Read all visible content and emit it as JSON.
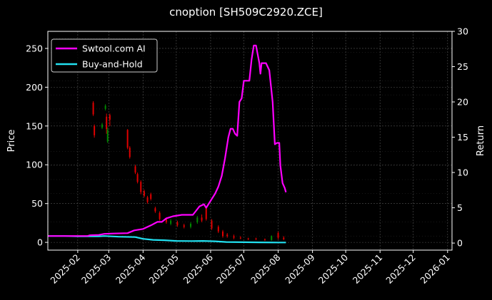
{
  "chart_data": {
    "type": "line",
    "title": "cnoption [SH509C2920.ZCE]",
    "ylabel_left": "Price",
    "ylabel_right": "Return",
    "xlim": [
      "2025-01-05",
      "2026-01-05"
    ],
    "ylim_left": [
      -10,
      272
    ],
    "ylim_right": [
      -1,
      30
    ],
    "grid": true,
    "legend_position": "upper-left",
    "x_ticks": [
      "2025-02",
      "2025-03",
      "2025-04",
      "2025-05",
      "2025-06",
      "2025-07",
      "2025-08",
      "2025-09",
      "2025-10",
      "2025-11",
      "2025-12",
      "2026-01"
    ],
    "y_ticks_left": [
      0,
      50,
      100,
      150,
      200,
      250
    ],
    "y_ticks_right": [
      0,
      5,
      10,
      15,
      20,
      25,
      30
    ],
    "colors": {
      "ai": "#ff00ff",
      "hold": "#22e0f0",
      "up": "#008a00",
      "down": "#e00000",
      "grid": "#555555",
      "background": "#000000"
    },
    "series": [
      {
        "name": "Swtool.com AI",
        "axis": "right",
        "points": [
          [
            "2025-01-05",
            1.0
          ],
          [
            "2025-02-10",
            1.0
          ],
          [
            "2025-02-12",
            1.1
          ],
          [
            "2025-02-20",
            1.15
          ],
          [
            "2025-02-25",
            1.3
          ],
          [
            "2025-03-05",
            1.35
          ],
          [
            "2025-03-18",
            1.4
          ],
          [
            "2025-03-24",
            1.8
          ],
          [
            "2025-04-01",
            2.0
          ],
          [
            "2025-04-08",
            2.5
          ],
          [
            "2025-04-14",
            3.0
          ],
          [
            "2025-04-18",
            3.0
          ],
          [
            "2025-04-22",
            3.5
          ],
          [
            "2025-04-28",
            3.8
          ],
          [
            "2025-05-06",
            4.0
          ],
          [
            "2025-05-12",
            4.0
          ],
          [
            "2025-05-16",
            4.0
          ],
          [
            "2025-05-19",
            4.6
          ],
          [
            "2025-05-22",
            5.2
          ],
          [
            "2025-05-26",
            5.5
          ],
          [
            "2025-05-28",
            5.0
          ],
          [
            "2025-06-01",
            6.0
          ],
          [
            "2025-06-05",
            7.0
          ],
          [
            "2025-06-08",
            8.0
          ],
          [
            "2025-06-11",
            9.5
          ],
          [
            "2025-06-14",
            12.0
          ],
          [
            "2025-06-17",
            15.0
          ],
          [
            "2025-06-19",
            16.2
          ],
          [
            "2025-06-21",
            16.2
          ],
          [
            "2025-06-23",
            15.5
          ],
          [
            "2025-06-25",
            15.2
          ],
          [
            "2025-06-27",
            20.0
          ],
          [
            "2025-06-29",
            20.5
          ],
          [
            "2025-07-01",
            23.0
          ],
          [
            "2025-07-06",
            23.0
          ],
          [
            "2025-07-08",
            26.0
          ],
          [
            "2025-07-10",
            28.0
          ],
          [
            "2025-07-12",
            28.0
          ],
          [
            "2025-07-15",
            25.5
          ],
          [
            "2025-07-16",
            24.0
          ],
          [
            "2025-07-17",
            25.5
          ],
          [
            "2025-07-21",
            25.5
          ],
          [
            "2025-07-24",
            24.5
          ],
          [
            "2025-07-27",
            20.0
          ],
          [
            "2025-07-29",
            14.0
          ],
          [
            "2025-07-31",
            14.2
          ],
          [
            "2025-08-02",
            14.2
          ],
          [
            "2025-08-03",
            11.0
          ],
          [
            "2025-08-05",
            8.5
          ],
          [
            "2025-08-07",
            7.8
          ],
          [
            "2025-08-08",
            7.2
          ]
        ]
      },
      {
        "name": "Buy-and-Hold",
        "axis": "right",
        "points": [
          [
            "2025-01-05",
            1.0
          ],
          [
            "2025-01-20",
            1.0
          ],
          [
            "2025-02-01",
            0.95
          ],
          [
            "2025-02-20",
            0.95
          ],
          [
            "2025-02-25",
            1.0
          ],
          [
            "2025-03-10",
            0.9
          ],
          [
            "2025-03-25",
            0.85
          ],
          [
            "2025-04-01",
            0.6
          ],
          [
            "2025-04-10",
            0.45
          ],
          [
            "2025-04-20",
            0.4
          ],
          [
            "2025-05-01",
            0.3
          ],
          [
            "2025-05-15",
            0.28
          ],
          [
            "2025-05-25",
            0.3
          ],
          [
            "2025-06-05",
            0.25
          ],
          [
            "2025-06-15",
            0.15
          ],
          [
            "2025-07-01",
            0.12
          ],
          [
            "2025-07-15",
            0.1
          ],
          [
            "2025-08-01",
            0.08
          ],
          [
            "2025-08-08",
            0.08
          ]
        ]
      }
    ],
    "candles": [
      [
        "2025-02-15",
        180,
        165,
        182,
        163
      ],
      [
        "2025-02-16",
        150,
        138,
        152,
        135
      ],
      [
        "2025-02-23",
        148,
        152,
        154,
        146
      ],
      [
        "2025-02-26",
        172,
        176,
        178,
        170
      ],
      [
        "2025-02-27",
        162,
        146,
        166,
        140
      ],
      [
        "2025-02-28",
        130,
        145,
        148,
        128
      ],
      [
        "2025-03-02",
        164,
        158,
        166,
        150
      ],
      [
        "2025-03-18",
        145,
        122,
        146,
        120
      ],
      [
        "2025-03-20",
        122,
        110,
        124,
        108
      ],
      [
        "2025-03-25",
        98,
        90,
        100,
        88
      ],
      [
        "2025-03-27",
        88,
        78,
        90,
        76
      ],
      [
        "2025-03-30",
        78,
        65,
        80,
        62
      ],
      [
        "2025-04-02",
        66,
        60,
        68,
        58
      ],
      [
        "2025-04-05",
        58,
        52,
        60,
        50
      ],
      [
        "2025-04-08",
        62,
        56,
        64,
        54
      ],
      [
        "2025-04-12",
        44,
        40,
        46,
        38
      ],
      [
        "2025-04-16",
        38,
        30,
        40,
        28
      ],
      [
        "2025-04-22",
        30,
        26,
        32,
        24
      ],
      [
        "2025-04-26",
        24,
        28,
        30,
        22
      ],
      [
        "2025-05-02",
        26,
        22,
        28,
        20
      ],
      [
        "2025-05-08",
        22,
        20,
        24,
        18
      ],
      [
        "2025-05-14",
        20,
        24,
        26,
        18
      ],
      [
        "2025-05-20",
        26,
        32,
        34,
        24
      ],
      [
        "2025-05-24",
        32,
        28,
        36,
        26
      ],
      [
        "2025-05-28",
        44,
        30,
        46,
        28
      ],
      [
        "2025-06-02",
        28,
        18,
        30,
        16
      ],
      [
        "2025-06-08",
        20,
        14,
        22,
        12
      ],
      [
        "2025-06-12",
        14,
        8,
        16,
        6
      ],
      [
        "2025-06-16",
        10,
        8,
        12,
        6
      ],
      [
        "2025-06-22",
        8,
        6,
        10,
        4
      ],
      [
        "2025-06-28",
        6,
        5,
        8,
        4
      ],
      [
        "2025-07-05",
        5,
        4,
        6,
        3
      ],
      [
        "2025-07-12",
        5,
        4,
        6,
        3
      ],
      [
        "2025-07-20",
        4,
        3,
        5,
        2
      ],
      [
        "2025-07-26",
        3,
        8,
        9,
        2
      ],
      [
        "2025-08-01",
        12,
        6,
        14,
        4
      ],
      [
        "2025-08-06",
        6,
        4,
        8,
        3
      ]
    ]
  }
}
